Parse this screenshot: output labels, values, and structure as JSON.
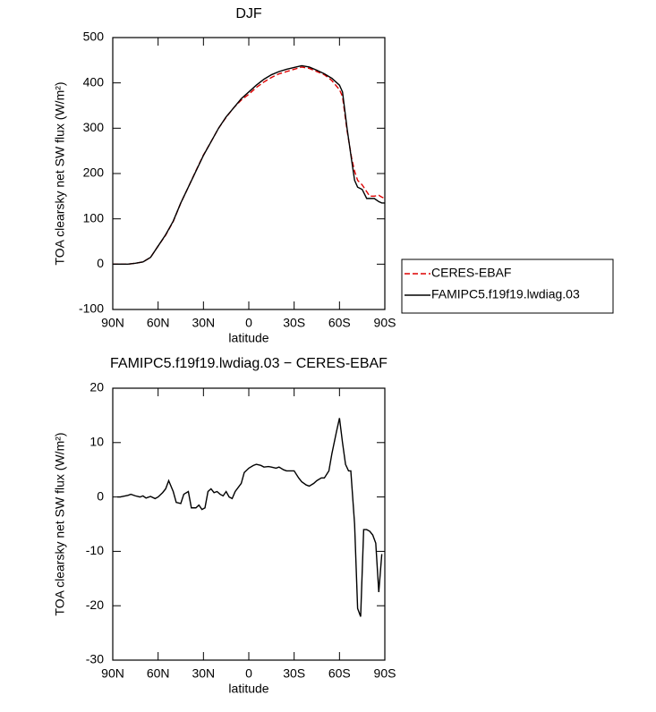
{
  "chart_data": [
    {
      "type": "line",
      "title": "DJF",
      "xlabel": "latitude",
      "ylabel": "TOA clearsky net SW flux (W/m²)",
      "x": [
        90,
        85,
        80,
        75,
        70,
        65,
        60,
        55,
        50,
        45,
        40,
        35,
        30,
        25,
        20,
        15,
        10,
        5,
        0,
        -5,
        -10,
        -15,
        -20,
        -25,
        -30,
        -35,
        -40,
        -45,
        -50,
        -55,
        -60,
        -62,
        -65,
        -68,
        -70,
        -72,
        -75,
        -78,
        -80,
        -83,
        -86,
        -88,
        -90
      ],
      "series": [
        {
          "name": "CERES-EBAF",
          "color": "#dd0000",
          "linestyle": "dashed",
          "values": [
            0,
            0,
            0,
            2,
            5,
            15,
            40,
            64,
            94,
            135,
            170,
            206,
            241,
            270,
            300,
            324,
            345,
            362,
            375,
            390,
            402,
            412,
            420,
            425,
            430,
            435,
            432,
            425,
            418,
            405,
            385,
            370,
            295,
            235,
            205,
            185,
            175,
            160,
            150,
            150,
            152,
            148,
            145
          ]
        },
        {
          "name": "FAMIPC5.f19f19.lwdiag.03",
          "color": "#000000",
          "linestyle": "solid",
          "values": [
            0,
            0,
            0,
            2,
            5,
            15,
            40,
            65,
            95,
            135,
            170,
            205,
            240,
            270,
            300,
            325,
            345,
            365,
            380,
            395,
            408,
            418,
            425,
            430,
            434,
            438,
            435,
            428,
            420,
            410,
            395,
            380,
            300,
            230,
            185,
            170,
            165,
            145,
            145,
            145,
            138,
            135,
            135
          ]
        }
      ],
      "xlim": [
        90,
        -90
      ],
      "xticks": [
        {
          "value": 90,
          "label": "90N"
        },
        {
          "value": 60,
          "label": "60N"
        },
        {
          "value": 30,
          "label": "30N"
        },
        0,
        {
          "value": -30,
          "label": "30S"
        },
        {
          "value": -60,
          "label": "60S"
        },
        {
          "value": -90,
          "label": "90S"
        }
      ],
      "ylim": [
        -100,
        500
      ],
      "yticks": [
        -100,
        0,
        100,
        200,
        300,
        400,
        500
      ],
      "legend": "right"
    },
    {
      "type": "line",
      "title": "FAMIPC5.f19f19.lwdiag.03 − CERES-EBAF",
      "xlabel": "latitude",
      "ylabel": "TOA clearsky net SW flux (W/m²)",
      "x": [
        87,
        85,
        80,
        78,
        75,
        72,
        70,
        68,
        65,
        62,
        60,
        57,
        55,
        53,
        50,
        48,
        45,
        43,
        40,
        38,
        35,
        33,
        31,
        29,
        27,
        25,
        23,
        21,
        19,
        17,
        15,
        13,
        11,
        9,
        5,
        3,
        0,
        -3,
        -5,
        -8,
        -10,
        -13,
        -15,
        -18,
        -20,
        -23,
        -25,
        -28,
        -30,
        -33,
        -35,
        -38,
        -40,
        -43,
        -45,
        -48,
        -50,
        -53,
        -55,
        -58,
        -60,
        -62,
        -64,
        -66,
        -67.5,
        -70,
        -72,
        -74,
        -76,
        -78,
        -80,
        -82,
        -84,
        -86,
        -88
      ],
      "values": [
        0,
        0,
        0.3,
        0.5,
        0.2,
        0,
        0.2,
        -0.2,
        0.1,
        -0.3,
        0,
        0.8,
        1.5,
        3,
        1,
        -1,
        -1.2,
        0.5,
        1,
        -2,
        -2,
        -1.5,
        -2.3,
        -2,
        1,
        1.5,
        0.8,
        1,
        0.5,
        0.2,
        1,
        0,
        -0.3,
        1,
        2.5,
        4.5,
        5.3,
        5.8,
        6,
        5.8,
        5.5,
        5.6,
        5.5,
        5.3,
        5.5,
        5,
        4.8,
        4.8,
        4.8,
        3.5,
        2.8,
        2.2,
        2,
        2.5,
        3,
        3.5,
        3.5,
        4.8,
        8,
        12,
        14.5,
        10,
        6,
        4.8,
        4.8,
        -5,
        -20.5,
        -22,
        -6,
        -6,
        -6.3,
        -7,
        -8.5,
        -17.5,
        -10.5
      ],
      "color": "#000000",
      "xlim": [
        90,
        -90
      ],
      "xticks": [
        {
          "value": 90,
          "label": "90N"
        },
        {
          "value": 60,
          "label": "60N"
        },
        {
          "value": 30,
          "label": "30N"
        },
        0,
        {
          "value": -30,
          "label": "30S"
        },
        {
          "value": -60,
          "label": "60S"
        },
        {
          "value": -90,
          "label": "90S"
        }
      ],
      "ylim": [
        -30,
        20
      ],
      "yticks": [
        -30,
        -20,
        -10,
        0,
        10,
        20
      ]
    }
  ]
}
